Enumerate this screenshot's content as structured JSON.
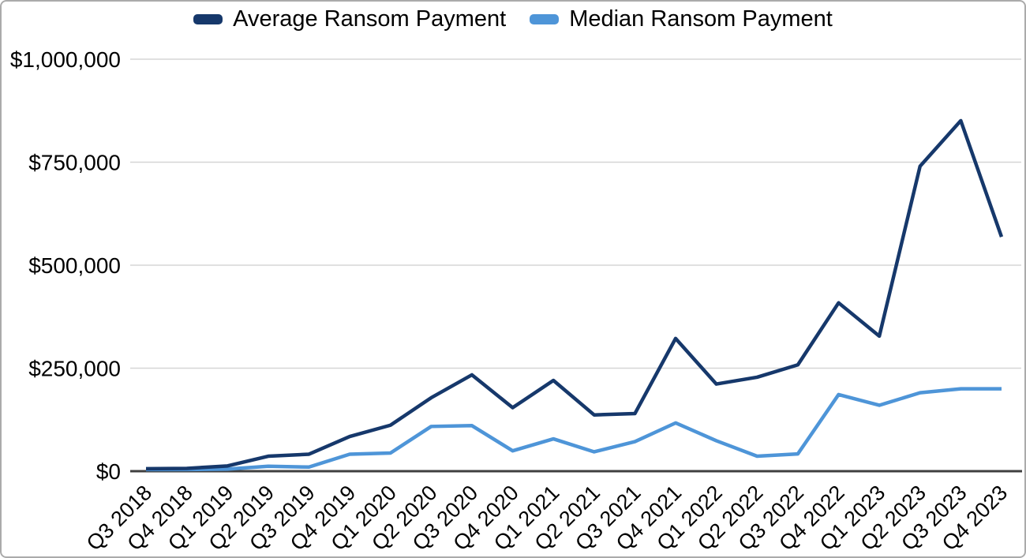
{
  "chart_data": {
    "type": "line",
    "categories": [
      "Q3 2018",
      "Q4 2018",
      "Q1 2019",
      "Q2 2019",
      "Q3 2019",
      "Q4 2019",
      "Q1 2020",
      "Q2 2020",
      "Q3 2020",
      "Q4 2020",
      "Q1 2021",
      "Q2 2021",
      "Q3 2021",
      "Q4 2021",
      "Q1 2022",
      "Q2 2022",
      "Q3 2022",
      "Q4 2022",
      "Q1 2023",
      "Q2 2023",
      "Q3 2023",
      "Q4 2023"
    ],
    "series": [
      {
        "name": "Average Ransom Payment",
        "color": "#16386b",
        "values": [
          5974,
          6733,
          12762,
          36295,
          41198,
          84116,
          111605,
          178254,
          233817,
          154108,
          220298,
          136576,
          139739,
          322168,
          211529,
          228125,
          258143,
          408644,
          327883,
          740144,
          850700,
          568705
        ]
      },
      {
        "name": "Median Ransom Payment",
        "color": "#4e95d8",
        "values": [
          4000,
          4000,
          5000,
          12000,
          10000,
          41179,
          44021,
          108597,
          110532,
          49450,
          78398,
          47008,
          71674,
          117116,
          73906,
          36360,
          41987,
          185972,
          160000,
          190424,
          200000,
          200000
        ]
      }
    ],
    "title": "",
    "xlabel": "",
    "ylabel": "",
    "ylim": [
      0,
      1000000
    ],
    "y_ticks": [
      {
        "value": 0,
        "label": "$0"
      },
      {
        "value": 250000,
        "label": "$250,000"
      },
      {
        "value": 500000,
        "label": "$500,000"
      },
      {
        "value": 750000,
        "label": "$750,000"
      },
      {
        "value": 1000000,
        "label": "$1,000,000"
      }
    ],
    "grid": "horizontal",
    "legend_position": "top",
    "colors": {
      "gridline": "#d6d6d6",
      "axis": "#3f3f3f",
      "text": "#000000",
      "background": "#ffffff",
      "frame_border": "#ababab"
    }
  }
}
